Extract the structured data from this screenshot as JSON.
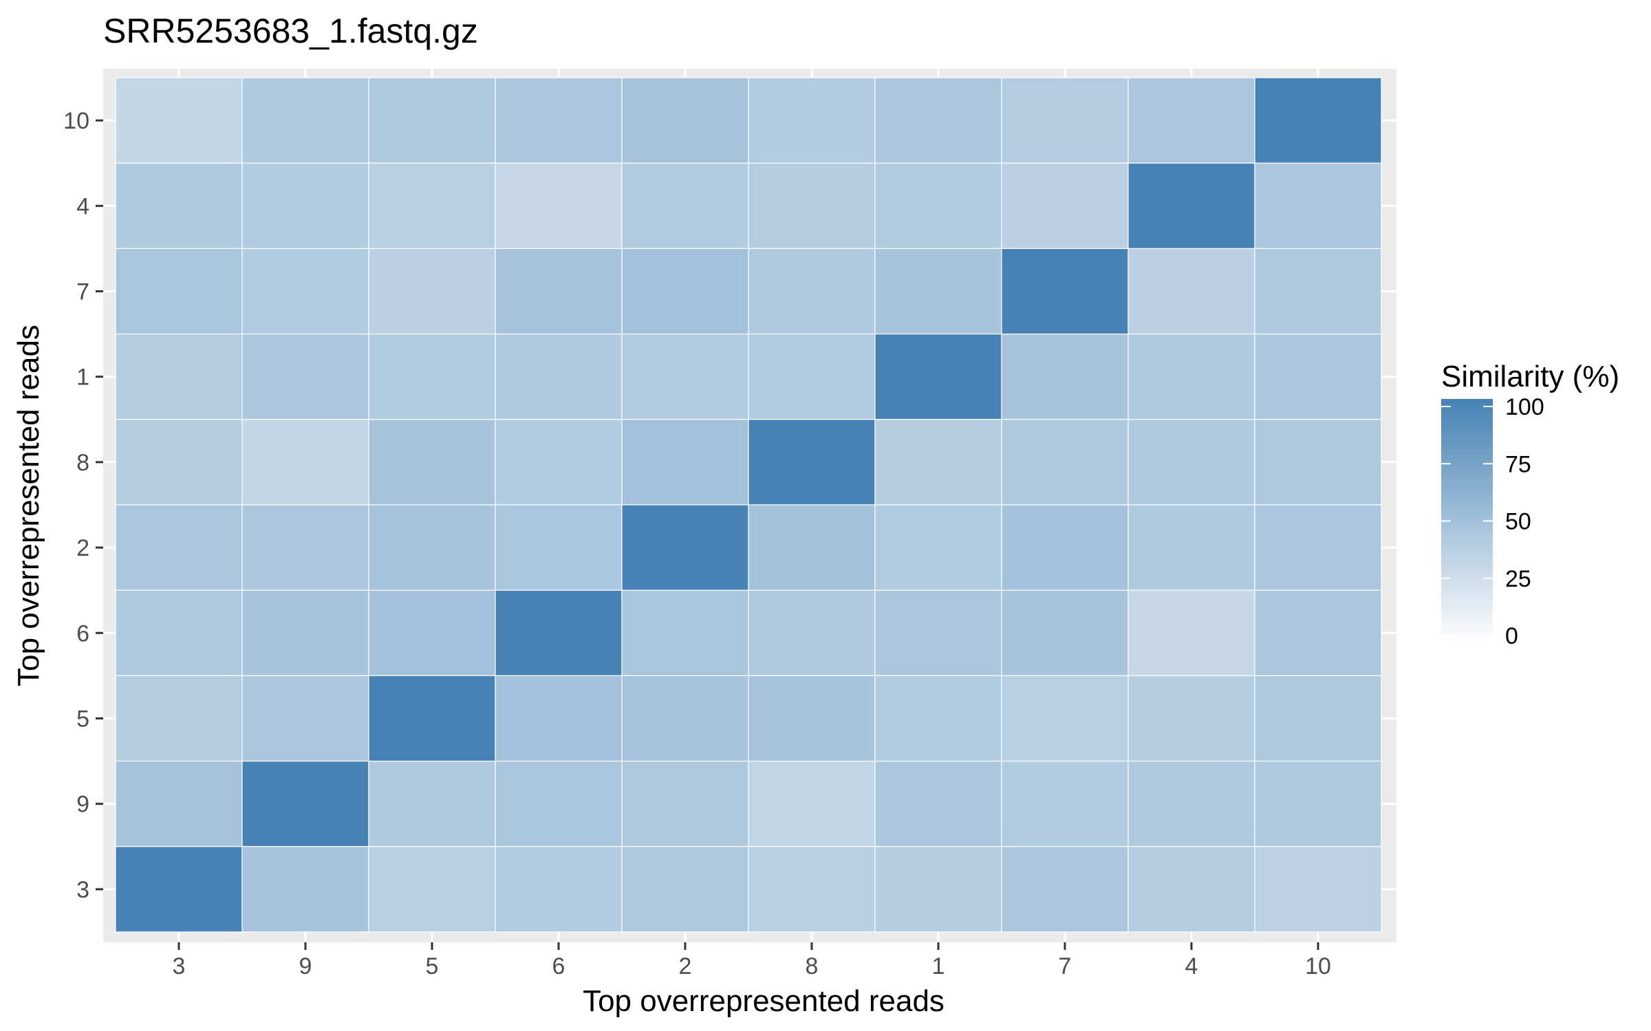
{
  "chart_data": {
    "type": "heatmap",
    "title": "SRR5253683_1.fastq.gz",
    "xlabel": "Top overrepresented reads",
    "ylabel": "Top overrepresented reads",
    "x_categories": [
      "3",
      "9",
      "5",
      "6",
      "2",
      "8",
      "1",
      "7",
      "4",
      "10"
    ],
    "y_categories_bottom_to_top": [
      "3",
      "9",
      "5",
      "6",
      "2",
      "8",
      "1",
      "7",
      "4",
      "10"
    ],
    "legend": {
      "title": "Similarity (%)",
      "ticks": [
        0,
        25,
        50,
        75,
        100
      ],
      "range": [
        0,
        100
      ],
      "low_color": "#ffffff",
      "high_color": "#4682b4",
      "position": "right"
    },
    "values_rows_top_to_bottom": [
      [
        33,
        43,
        43,
        45,
        48,
        42,
        45,
        41,
        45,
        100
      ],
      [
        43,
        42,
        38,
        31,
        42,
        41,
        42,
        37,
        100,
        45
      ],
      [
        46,
        42,
        37,
        48,
        50,
        43,
        47,
        100,
        37,
        43
      ],
      [
        41,
        45,
        42,
        43,
        42,
        42,
        100,
        47,
        43,
        45
      ],
      [
        40,
        33,
        47,
        42,
        50,
        100,
        40,
        43,
        43,
        44
      ],
      [
        45,
        45,
        47,
        46,
        100,
        49,
        42,
        50,
        43,
        45
      ],
      [
        44,
        47,
        50,
        100,
        46,
        43,
        45,
        47,
        31,
        45
      ],
      [
        40,
        45,
        100,
        50,
        47,
        47,
        42,
        38,
        40,
        43
      ],
      [
        48,
        100,
        43,
        46,
        44,
        34,
        45,
        42,
        43,
        43
      ],
      [
        100,
        47,
        38,
        42,
        44,
        38,
        40,
        45,
        41,
        36
      ]
    ]
  }
}
